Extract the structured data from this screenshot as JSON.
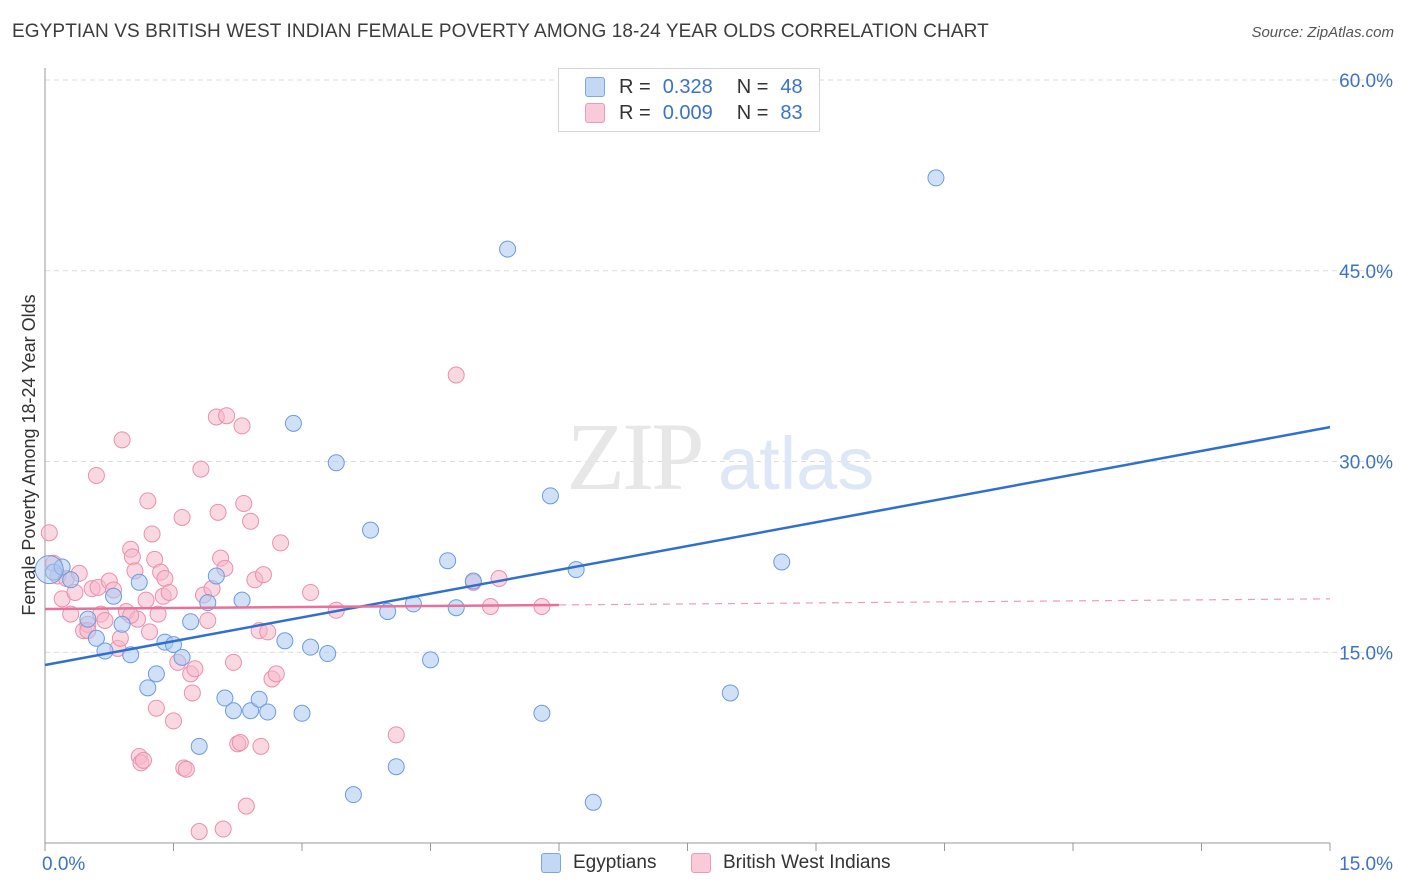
{
  "title": "EGYPTIAN VS BRITISH WEST INDIAN FEMALE POVERTY AMONG 18-24 YEAR OLDS CORRELATION CHART",
  "source": "Source: ZipAtlas.com",
  "watermark": {
    "zip": "ZIP",
    "atlas": "atlas"
  },
  "colors": {
    "egyptians_fill": "#a9c8f0",
    "egyptians_stroke": "#6b9be0",
    "egyptians_line": "#2f6fd0",
    "bwi_fill": "#f6b8cb",
    "bwi_stroke": "#ec8fad",
    "bwi_line": "#e8709a",
    "axis_text": "#3c72c8",
    "grid": "#dcdcdc"
  },
  "legend": {
    "rows": [
      {
        "r_label": "R =",
        "r_value": "0.328",
        "n_label": "N =",
        "n_value": "48"
      },
      {
        "r_label": "R =",
        "r_value": "0.009",
        "n_label": "N =",
        "n_value": "83"
      }
    ]
  },
  "bottom_legend": {
    "egyptians": "Egyptians",
    "bwi": "British West Indians"
  },
  "chart_data": {
    "type": "scatter",
    "title": "EGYPTIAN VS BRITISH WEST INDIAN FEMALE POVERTY AMONG 18-24 YEAR OLDS CORRELATION CHART",
    "xlabel": "",
    "ylabel": "Female Poverty Among 18-24 Year Olds",
    "xlim": [
      0,
      15
    ],
    "ylim": [
      0,
      60
    ],
    "x_tick_labels": [
      "0.0%",
      "15.0%"
    ],
    "y_ticks": [
      15,
      30,
      45,
      60
    ],
    "y_tick_labels": [
      "15.0%",
      "30.0%",
      "45.0%",
      "60.0%"
    ],
    "grid": true,
    "legend_position": "top-center",
    "series": [
      {
        "name": "Egyptians",
        "r": 0.328,
        "n": 48,
        "trend": {
          "x": [
            0,
            15
          ],
          "y": [
            14.0,
            32.7
          ],
          "style": "solid"
        },
        "points": [
          [
            0.1,
            21.3
          ],
          [
            0.2,
            21.7
          ],
          [
            0.3,
            20.7
          ],
          [
            0.5,
            17.6
          ],
          [
            0.6,
            16.1
          ],
          [
            0.7,
            15.1
          ],
          [
            0.8,
            19.4
          ],
          [
            0.9,
            17.2
          ],
          [
            1.0,
            14.8
          ],
          [
            1.1,
            20.5
          ],
          [
            1.2,
            12.2
          ],
          [
            1.3,
            13.3
          ],
          [
            1.4,
            15.8
          ],
          [
            1.5,
            15.6
          ],
          [
            1.6,
            14.6
          ],
          [
            1.7,
            17.4
          ],
          [
            1.8,
            7.6
          ],
          [
            1.9,
            18.9
          ],
          [
            2.0,
            21.0
          ],
          [
            2.1,
            11.4
          ],
          [
            2.2,
            10.4
          ],
          [
            2.3,
            19.1
          ],
          [
            2.4,
            10.4
          ],
          [
            2.5,
            11.3
          ],
          [
            2.6,
            10.3
          ],
          [
            2.8,
            15.9
          ],
          [
            2.9,
            33.0
          ],
          [
            3.0,
            10.2
          ],
          [
            3.1,
            15.4
          ],
          [
            3.3,
            14.9
          ],
          [
            3.4,
            29.9
          ],
          [
            3.6,
            3.8
          ],
          [
            3.8,
            24.6
          ],
          [
            4.0,
            18.2
          ],
          [
            4.1,
            6.0
          ],
          [
            4.3,
            18.8
          ],
          [
            4.5,
            14.4
          ],
          [
            4.7,
            22.2
          ],
          [
            4.8,
            18.5
          ],
          [
            5.0,
            20.6
          ],
          [
            5.4,
            46.7
          ],
          [
            5.8,
            10.2
          ],
          [
            5.9,
            27.3
          ],
          [
            6.2,
            21.5
          ],
          [
            6.4,
            3.2
          ],
          [
            8.0,
            11.8
          ],
          [
            8.6,
            22.1
          ],
          [
            10.4,
            52.3
          ]
        ]
      },
      {
        "name": "British West Indians",
        "r": 0.009,
        "n": 83,
        "trend": {
          "x": [
            0,
            15
          ],
          "y": [
            18.4,
            19.2
          ],
          "style": "solid-then-dashed",
          "solid_until": 6.0
        },
        "points": [
          [
            0.05,
            24.4
          ],
          [
            0.1,
            22.0
          ],
          [
            0.15,
            21.0
          ],
          [
            0.2,
            19.2
          ],
          [
            0.25,
            20.8
          ],
          [
            0.3,
            18.0
          ],
          [
            0.35,
            19.7
          ],
          [
            0.4,
            21.2
          ],
          [
            0.45,
            16.7
          ],
          [
            0.5,
            17.2
          ],
          [
            0.55,
            20.0
          ],
          [
            0.6,
            28.9
          ],
          [
            0.62,
            20.1
          ],
          [
            0.65,
            18.0
          ],
          [
            0.7,
            17.5
          ],
          [
            0.75,
            20.6
          ],
          [
            0.8,
            19.9
          ],
          [
            0.85,
            15.3
          ],
          [
            0.88,
            16.1
          ],
          [
            0.9,
            31.7
          ],
          [
            0.95,
            18.2
          ],
          [
            1.0,
            23.1
          ],
          [
            1.02,
            22.5
          ],
          [
            1.05,
            21.4
          ],
          [
            1.08,
            17.6
          ],
          [
            1.1,
            6.8
          ],
          [
            1.12,
            6.3
          ],
          [
            1.15,
            6.5
          ],
          [
            1.18,
            19.1
          ],
          [
            1.2,
            26.9
          ],
          [
            1.22,
            16.6
          ],
          [
            1.25,
            24.3
          ],
          [
            1.28,
            22.3
          ],
          [
            1.3,
            10.6
          ],
          [
            1.32,
            18.0
          ],
          [
            1.35,
            21.3
          ],
          [
            1.38,
            19.4
          ],
          [
            1.4,
            20.8
          ],
          [
            1.45,
            19.7
          ],
          [
            1.5,
            9.6
          ],
          [
            1.55,
            14.2
          ],
          [
            1.6,
            25.6
          ],
          [
            1.62,
            5.9
          ],
          [
            1.65,
            5.8
          ],
          [
            1.7,
            13.3
          ],
          [
            1.72,
            11.8
          ],
          [
            1.75,
            13.7
          ],
          [
            1.8,
            0.9
          ],
          [
            1.82,
            29.4
          ],
          [
            1.85,
            19.5
          ],
          [
            1.9,
            17.5
          ],
          [
            1.95,
            20.0
          ],
          [
            2.0,
            33.5
          ],
          [
            2.02,
            26.0
          ],
          [
            2.05,
            22.4
          ],
          [
            2.08,
            1.1
          ],
          [
            2.1,
            21.6
          ],
          [
            2.12,
            33.6
          ],
          [
            2.2,
            14.2
          ],
          [
            2.25,
            7.8
          ],
          [
            2.28,
            7.9
          ],
          [
            2.3,
            32.8
          ],
          [
            2.32,
            26.7
          ],
          [
            2.35,
            2.9
          ],
          [
            2.4,
            25.3
          ],
          [
            2.45,
            20.7
          ],
          [
            2.5,
            16.7
          ],
          [
            2.52,
            7.6
          ],
          [
            2.55,
            21.1
          ],
          [
            2.6,
            16.6
          ],
          [
            2.65,
            12.9
          ],
          [
            2.7,
            13.3
          ],
          [
            2.75,
            23.6
          ],
          [
            3.1,
            19.7
          ],
          [
            3.4,
            18.3
          ],
          [
            4.1,
            8.5
          ],
          [
            4.8,
            36.8
          ],
          [
            5.0,
            20.5
          ],
          [
            5.2,
            18.6
          ],
          [
            5.3,
            20.8
          ],
          [
            5.8,
            18.6
          ],
          [
            1.0,
            17.9
          ],
          [
            0.5,
            16.7
          ]
        ]
      }
    ]
  }
}
